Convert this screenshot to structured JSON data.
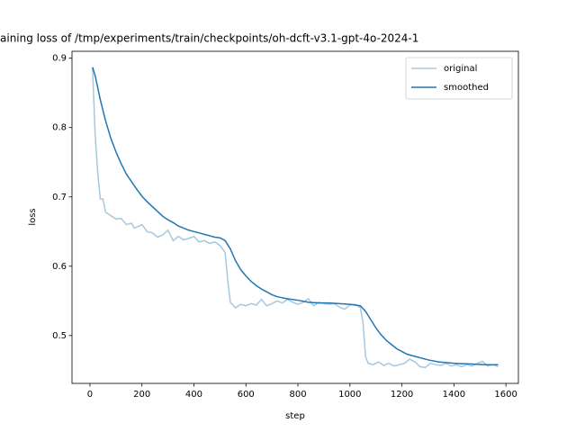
{
  "chart_data": {
    "type": "line",
    "title": "aining loss of /tmp/experiments/train/checkpoints/oh-dcft-v3.1-gpt-4o-2024-1",
    "xlabel": "step",
    "ylabel": "loss",
    "xlim": [
      -69,
      1648
    ],
    "ylim": [
      0.431,
      0.91
    ],
    "xticks": [
      0,
      200,
      400,
      600,
      800,
      1000,
      1200,
      1400,
      1600
    ],
    "yticks": [
      0.5,
      0.6,
      0.7,
      0.8,
      0.9
    ],
    "legend": "upper right",
    "series": [
      {
        "name": "original",
        "color": "#a5c8e1",
        "x": [
          10,
          20,
          30,
          40,
          50,
          60,
          80,
          100,
          120,
          140,
          160,
          170,
          190,
          200,
          220,
          240,
          260,
          280,
          300,
          320,
          340,
          360,
          380,
          400,
          420,
          440,
          460,
          480,
          500,
          520,
          530,
          540,
          560,
          580,
          600,
          620,
          640,
          660,
          680,
          700,
          720,
          740,
          760,
          780,
          800,
          820,
          840,
          860,
          880,
          900,
          920,
          940,
          960,
          980,
          1000,
          1020,
          1040,
          1050,
          1060,
          1070,
          1090,
          1110,
          1130,
          1150,
          1170,
          1190,
          1210,
          1230,
          1250,
          1270,
          1290,
          1310,
          1330,
          1350,
          1370,
          1390,
          1410,
          1430,
          1450,
          1470,
          1490,
          1510,
          1530,
          1550,
          1570
        ],
        "values": [
          0.887,
          0.79,
          0.735,
          0.697,
          0.697,
          0.678,
          0.673,
          0.668,
          0.669,
          0.66,
          0.662,
          0.655,
          0.658,
          0.66,
          0.65,
          0.648,
          0.642,
          0.645,
          0.652,
          0.637,
          0.643,
          0.638,
          0.64,
          0.643,
          0.635,
          0.637,
          0.633,
          0.635,
          0.63,
          0.62,
          0.58,
          0.548,
          0.54,
          0.545,
          0.543,
          0.546,
          0.544,
          0.552,
          0.543,
          0.546,
          0.55,
          0.547,
          0.552,
          0.548,
          0.545,
          0.548,
          0.553,
          0.543,
          0.548,
          0.546,
          0.545,
          0.546,
          0.541,
          0.538,
          0.544,
          0.545,
          0.54,
          0.52,
          0.47,
          0.46,
          0.458,
          0.462,
          0.457,
          0.46,
          0.456,
          0.458,
          0.46,
          0.466,
          0.462,
          0.455,
          0.454,
          0.46,
          0.458,
          0.457,
          0.46,
          0.456,
          0.458,
          0.455,
          0.458,
          0.456,
          0.46,
          0.463,
          0.456,
          0.458,
          0.455
        ]
      },
      {
        "name": "smoothed",
        "color": "#1f77b4",
        "x": [
          10,
          20,
          40,
          60,
          80,
          100,
          120,
          140,
          160,
          180,
          200,
          220,
          240,
          260,
          280,
          300,
          320,
          340,
          360,
          380,
          400,
          420,
          440,
          460,
          480,
          500,
          520,
          540,
          560,
          580,
          600,
          620,
          640,
          660,
          680,
          700,
          720,
          760,
          800,
          840,
          880,
          920,
          960,
          1000,
          1040,
          1060,
          1080,
          1100,
          1120,
          1140,
          1160,
          1180,
          1200,
          1220,
          1260,
          1300,
          1340,
          1400,
          1460,
          1520,
          1570
        ],
        "values": [
          0.887,
          0.875,
          0.84,
          0.81,
          0.785,
          0.765,
          0.748,
          0.733,
          0.722,
          0.711,
          0.701,
          0.693,
          0.686,
          0.679,
          0.672,
          0.667,
          0.663,
          0.658,
          0.655,
          0.652,
          0.65,
          0.648,
          0.646,
          0.644,
          0.642,
          0.641,
          0.637,
          0.625,
          0.608,
          0.595,
          0.586,
          0.578,
          0.572,
          0.567,
          0.563,
          0.559,
          0.556,
          0.553,
          0.551,
          0.548,
          0.547,
          0.547,
          0.546,
          0.545,
          0.543,
          0.535,
          0.523,
          0.511,
          0.501,
          0.493,
          0.487,
          0.481,
          0.477,
          0.473,
          0.469,
          0.465,
          0.462,
          0.46,
          0.459,
          0.458,
          0.458
        ]
      }
    ]
  }
}
